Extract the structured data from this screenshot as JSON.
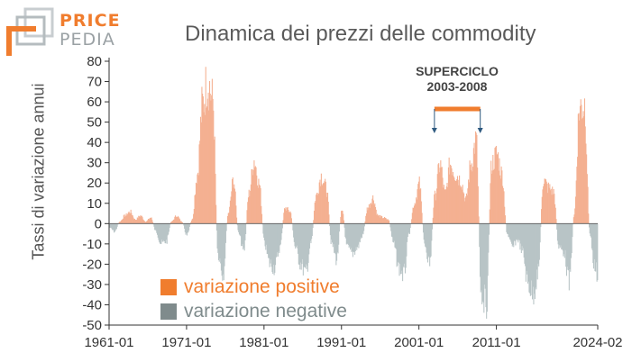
{
  "logo": {
    "word1": "PRICE",
    "word2": "PEDIA"
  },
  "colors": {
    "positive": "#f07d2e",
    "positive_bar": "#f4b091",
    "negative": "#7f8b8c",
    "negative_bar": "#b8c4c6",
    "bracket": "#f07d2e",
    "arrow": "#2f5a80"
  },
  "chart_data": {
    "type": "bar",
    "title": "Dinamica dei prezzi delle commodity",
    "ylabel": "Tassi di variazione annui",
    "xlabel": "",
    "ylim": [
      -50,
      80
    ],
    "yticks": [
      -50,
      -40,
      -30,
      -20,
      -10,
      0,
      10,
      20,
      30,
      40,
      50,
      60,
      70,
      80
    ],
    "xlim": [
      "1961-01",
      "2024-02"
    ],
    "xticks": [
      "1961-01",
      "1971-01",
      "1981-01",
      "1991-01",
      "2001-01",
      "2011-01",
      "2024-02"
    ],
    "frequency": "monthly",
    "series_labels": {
      "positive": "variazione positive",
      "negative": "variazione negative"
    },
    "annotation": {
      "label_line1": "SUPERCICLO",
      "label_line2": "2003-2008",
      "start": "2003-01",
      "end": "2008-12"
    },
    "anchors": [
      [
        "1961-01",
        -2
      ],
      [
        "1961-09",
        -4
      ],
      [
        "1962-05",
        1
      ],
      [
        "1963-01",
        4
      ],
      [
        "1963-09",
        6
      ],
      [
        "1964-05",
        2
      ],
      [
        "1965-01",
        4
      ],
      [
        "1965-09",
        1
      ],
      [
        "1966-05",
        3
      ],
      [
        "1967-01",
        -4
      ],
      [
        "1967-09",
        -10
      ],
      [
        "1968-05",
        -9
      ],
      [
        "1969-01",
        1
      ],
      [
        "1969-09",
        4
      ],
      [
        "1970-05",
        1
      ],
      [
        "1971-01",
        -6
      ],
      [
        "1971-09",
        2
      ],
      [
        "1972-05",
        25
      ],
      [
        "1973-01",
        60
      ],
      [
        "1973-09",
        72
      ],
      [
        "1974-05",
        62
      ],
      [
        "1975-01",
        -15
      ],
      [
        "1975-09",
        -25
      ],
      [
        "1976-05",
        5
      ],
      [
        "1977-01",
        22
      ],
      [
        "1977-09",
        -5
      ],
      [
        "1978-05",
        -14
      ],
      [
        "1979-01",
        15
      ],
      [
        "1979-09",
        32
      ],
      [
        "1980-05",
        20
      ],
      [
        "1981-01",
        -10
      ],
      [
        "1981-09",
        -20
      ],
      [
        "1982-05",
        -22
      ],
      [
        "1983-01",
        -12
      ],
      [
        "1983-09",
        8
      ],
      [
        "1984-05",
        6
      ],
      [
        "1985-01",
        -12
      ],
      [
        "1985-09",
        -20
      ],
      [
        "1986-05",
        -25
      ],
      [
        "1987-01",
        -10
      ],
      [
        "1987-09",
        14
      ],
      [
        "1988-05",
        24
      ],
      [
        "1989-01",
        18
      ],
      [
        "1989-09",
        -10
      ],
      [
        "1990-05",
        -18
      ],
      [
        "1991-01",
        8
      ],
      [
        "1991-09",
        -12
      ],
      [
        "1992-05",
        -15
      ],
      [
        "1993-01",
        -12
      ],
      [
        "1993-09",
        -6
      ],
      [
        "1994-05",
        8
      ],
      [
        "1995-01",
        13
      ],
      [
        "1995-09",
        4
      ],
      [
        "1996-05",
        3
      ],
      [
        "1997-01",
        2
      ],
      [
        "1997-09",
        -10
      ],
      [
        "1998-05",
        -22
      ],
      [
        "1999-01",
        -26
      ],
      [
        "1999-09",
        -5
      ],
      [
        "2000-05",
        10
      ],
      [
        "2001-01",
        20
      ],
      [
        "2001-09",
        -10
      ],
      [
        "2002-05",
        -20
      ],
      [
        "2003-01",
        14
      ],
      [
        "2003-09",
        30
      ],
      [
        "2004-05",
        15
      ],
      [
        "2005-01",
        30
      ],
      [
        "2005-09",
        25
      ],
      [
        "2006-05",
        22
      ],
      [
        "2007-01",
        12
      ],
      [
        "2007-09",
        30
      ],
      [
        "2008-05",
        42
      ],
      [
        "2009-01",
        -35
      ],
      [
        "2009-09",
        -40
      ],
      [
        "2010-05",
        30
      ],
      [
        "2011-01",
        35
      ],
      [
        "2011-09",
        25
      ],
      [
        "2012-05",
        -5
      ],
      [
        "2013-01",
        -12
      ],
      [
        "2013-09",
        -8
      ],
      [
        "2014-05",
        -14
      ],
      [
        "2015-01",
        -30
      ],
      [
        "2015-09",
        -35
      ],
      [
        "2016-05",
        -25
      ],
      [
        "2017-01",
        22
      ],
      [
        "2017-09",
        18
      ],
      [
        "2018-05",
        16
      ],
      [
        "2019-01",
        -12
      ],
      [
        "2019-09",
        -14
      ],
      [
        "2020-05",
        -30
      ],
      [
        "2021-01",
        5
      ],
      [
        "2021-09",
        58
      ],
      [
        "2022-05",
        60
      ],
      [
        "2023-01",
        -5
      ],
      [
        "2023-09",
        -22
      ],
      [
        "2024-02",
        -27
      ]
    ]
  }
}
